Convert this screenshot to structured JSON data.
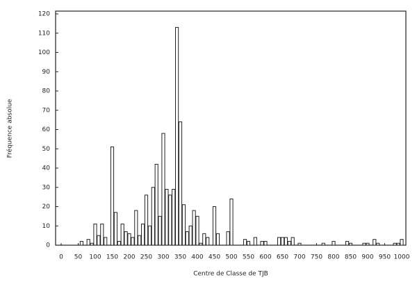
{
  "chart_data": {
    "type": "bar",
    "xlabel": "Centre de Classe de TJB",
    "ylabel": "Fréquence absolue",
    "x": [
      60,
      80,
      90,
      100,
      110,
      120,
      130,
      150,
      160,
      170,
      180,
      190,
      200,
      210,
      220,
      230,
      240,
      250,
      260,
      270,
      280,
      290,
      300,
      310,
      320,
      330,
      340,
      350,
      360,
      370,
      380,
      390,
      400,
      410,
      420,
      430,
      450,
      460,
      490,
      500,
      540,
      550,
      570,
      590,
      600,
      640,
      650,
      660,
      670,
      680,
      700,
      770,
      800,
      840,
      850,
      890,
      900,
      920,
      930,
      980,
      990,
      1000
    ],
    "values": [
      2,
      3,
      1,
      11,
      5,
      11,
      4,
      51,
      17,
      2,
      11,
      7,
      6,
      4,
      18,
      5,
      11,
      26,
      10,
      30,
      42,
      15,
      58,
      29,
      26,
      29,
      113,
      64,
      21,
      7,
      10,
      18,
      15,
      1,
      6,
      4,
      20,
      6,
      7,
      24,
      3,
      2,
      4,
      2,
      2,
      4,
      4,
      4,
      2,
      4,
      1,
      1,
      2,
      2,
      1,
      1,
      1,
      3,
      1,
      1,
      1,
      3
    ],
    "color": "#ffffff",
    "xlim": [
      0,
      1000
    ],
    "xticks": [
      0,
      50,
      100,
      150,
      200,
      250,
      300,
      350,
      400,
      450,
      500,
      550,
      600,
      650,
      700,
      750,
      800,
      850,
      900,
      950,
      1000
    ],
    "ylim": [
      0,
      120
    ],
    "yticks": [
      0,
      10,
      20,
      30,
      40,
      50,
      60,
      70,
      80,
      90,
      100,
      110,
      120
    ]
  }
}
